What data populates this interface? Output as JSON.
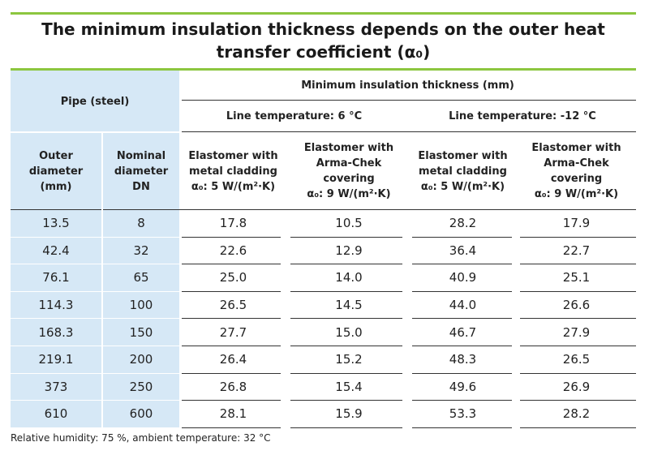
{
  "title": {
    "line1": "The minimum insulation thickness depends on the outer heat",
    "line2": "transfer coefficient (α₀)"
  },
  "header": {
    "pipe": "Pipe (steel)",
    "min_thickness": "Minimum insulation thickness (mm)",
    "line_temp_1": "Line temperature: 6 °C",
    "line_temp_2": "Line temperature: -12 °C",
    "outer_diameter": [
      "Outer",
      "diameter",
      "(mm)"
    ],
    "nominal_diameter": [
      "Nominal",
      "diameter",
      "DN"
    ],
    "col_a": [
      "Elastomer with",
      "metal cladding",
      "α₀: 5 W/(m²·K)"
    ],
    "col_b": [
      "Elastomer with",
      "Arma-Chek",
      "covering",
      "α₀: 9 W/(m²·K)"
    ],
    "col_c": [
      "Elastomer with",
      "metal cladding",
      "α₀: 5 W/(m²·K)"
    ],
    "col_d": [
      "Elastomer with",
      "Arma-Chek",
      "covering",
      "α₀: 9 W/(m²·K)"
    ]
  },
  "rows": [
    [
      "13.5",
      "8",
      "17.8",
      "10.5",
      "28.2",
      "17.9"
    ],
    [
      "42.4",
      "32",
      "22.6",
      "12.9",
      "36.4",
      "22.7"
    ],
    [
      "76.1",
      "65",
      "25.0",
      "14.0",
      "40.9",
      "25.1"
    ],
    [
      "114.3",
      "100",
      "26.5",
      "14.5",
      "44.0",
      "26.6"
    ],
    [
      "168.3",
      "150",
      "27.7",
      "15.0",
      "46.7",
      "27.9"
    ],
    [
      "219.1",
      "200",
      "26.4",
      "15.2",
      "48.3",
      "26.5"
    ],
    [
      "373",
      "250",
      "26.8",
      "15.4",
      "49.6",
      "26.9"
    ],
    [
      "610",
      "600",
      "28.1",
      "15.9",
      "53.3",
      "28.2"
    ]
  ],
  "footnote": "Relative humidity: 75 %, ambient temperature: 32 °C"
}
